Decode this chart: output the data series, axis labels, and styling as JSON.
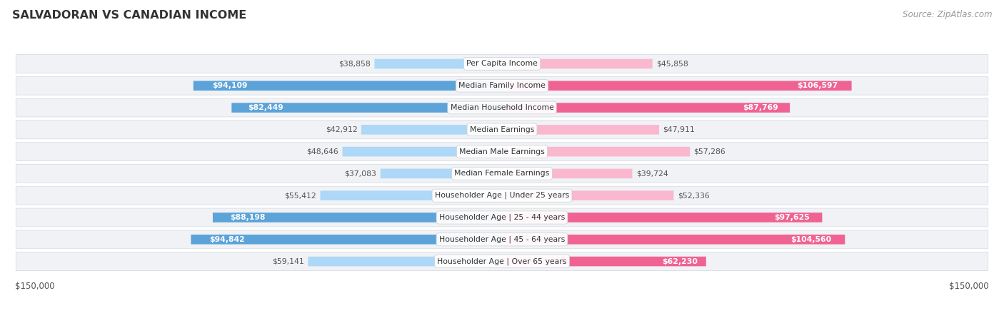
{
  "title": "SALVADORAN VS CANADIAN INCOME",
  "source": "Source: ZipAtlas.com",
  "categories": [
    "Per Capita Income",
    "Median Family Income",
    "Median Household Income",
    "Median Earnings",
    "Median Male Earnings",
    "Median Female Earnings",
    "Householder Age | Under 25 years",
    "Householder Age | 25 - 44 years",
    "Householder Age | 45 - 64 years",
    "Householder Age | Over 65 years"
  ],
  "salvadoran": [
    38858,
    94109,
    82449,
    42912,
    48646,
    37083,
    55412,
    88198,
    94842,
    59141
  ],
  "canadian": [
    45858,
    106597,
    87769,
    47911,
    57286,
    39724,
    52336,
    97625,
    104560,
    62230
  ],
  "max_val": 150000,
  "sal_color_light": "#ADD8F7",
  "sal_color_dark": "#5BA3D9",
  "can_color_light": "#F9B8CE",
  "can_color_dark": "#F06292",
  "bg_color": "#ffffff",
  "row_bg": "#f0f2f5",
  "row_border": "#d8dce3",
  "label_dark_threshold": 60000,
  "title_color": "#333333",
  "source_color": "#999999",
  "value_outside_color": "#555555"
}
